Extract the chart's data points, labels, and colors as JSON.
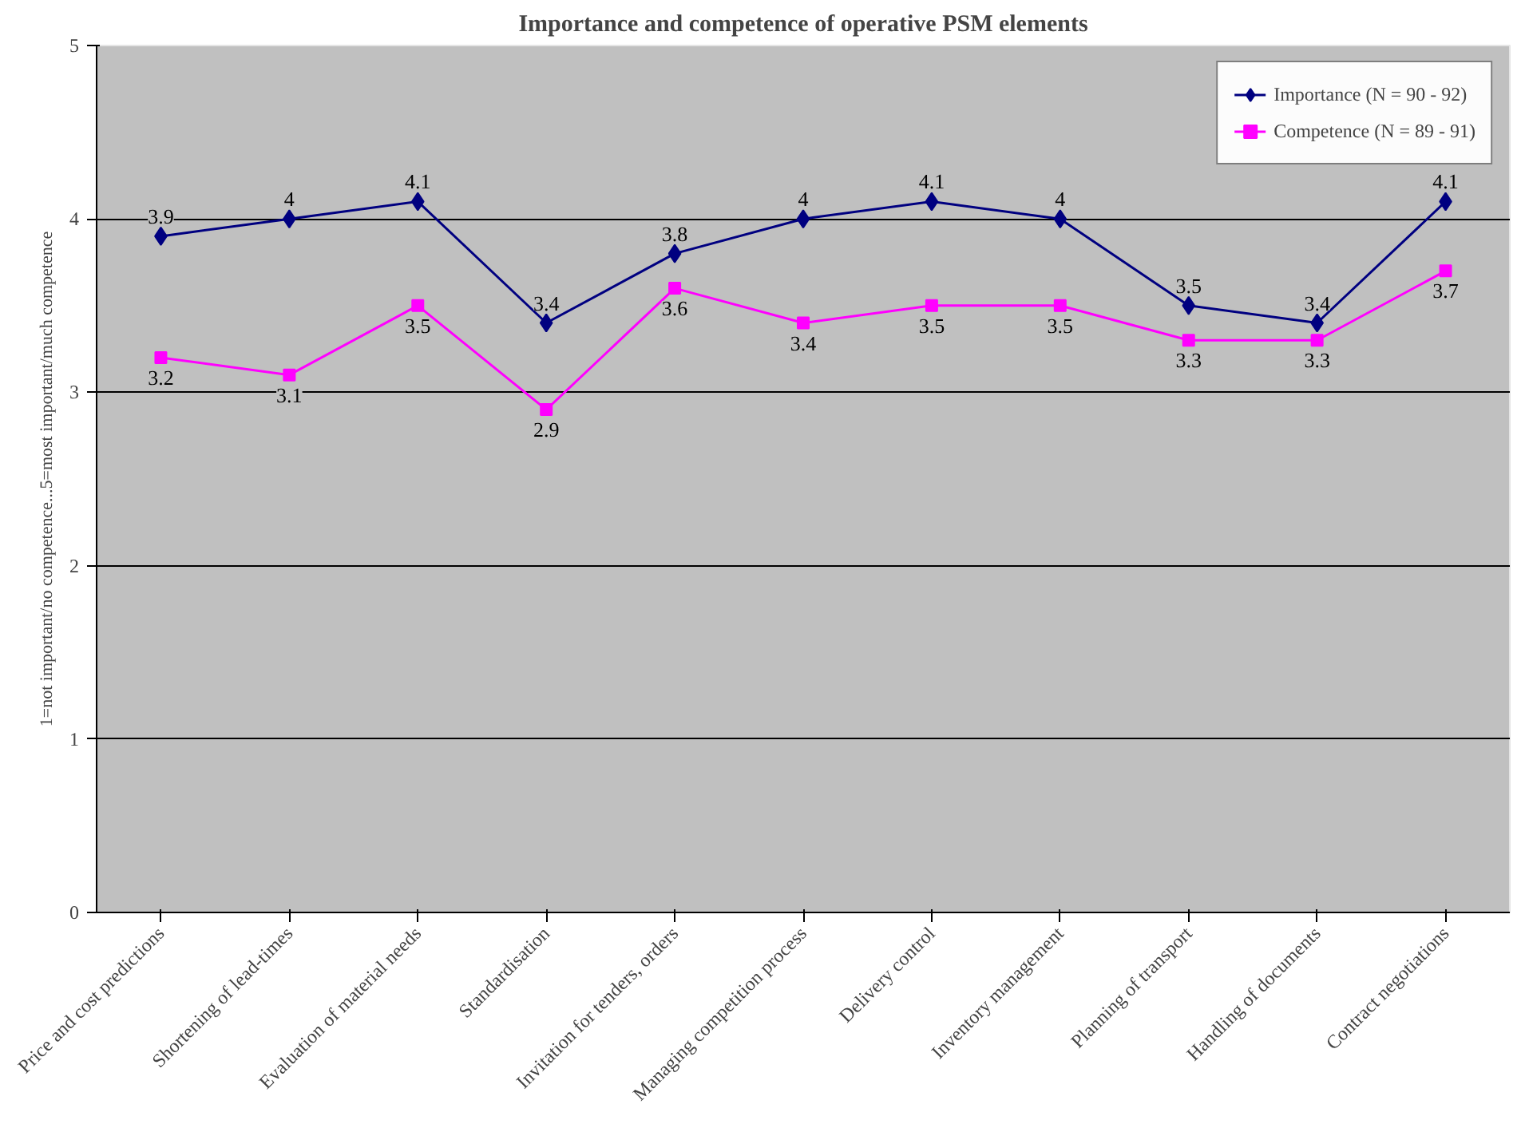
{
  "chart_data": {
    "type": "line",
    "title": "Importance and competence of operative PSM elements",
    "ylabel": "1=not important/no competence...5=most important/much competence",
    "categories": [
      "Price and cost predictions",
      "Shortening of lead-times",
      "Evaluation of material needs",
      "Standardisation",
      "Invitation for tenders, orders",
      "Managing competition process",
      "Delivery control",
      "Inventory management",
      "Planning of transport",
      "Handling of documents",
      "Contract negotiations"
    ],
    "series": [
      {
        "name": "Importance (N = 90 - 92)",
        "color": "#000080",
        "marker": "diamond",
        "values": [
          3.9,
          4,
          4.1,
          3.4,
          3.8,
          4,
          4.1,
          4,
          3.5,
          3.4,
          4.1
        ]
      },
      {
        "name": "Competence (N = 89 - 91)",
        "color": "#ff00ff",
        "marker": "square",
        "values": [
          3.2,
          3.1,
          3.5,
          2.9,
          3.6,
          3.4,
          3.5,
          3.5,
          3.3,
          3.3,
          3.7
        ]
      }
    ],
    "ylim": [
      0,
      5
    ],
    "yticks": [
      0,
      1,
      2,
      3,
      4,
      5
    ],
    "grid": "y",
    "legend": "top right",
    "data_labels": true,
    "line_style": "solid"
  }
}
